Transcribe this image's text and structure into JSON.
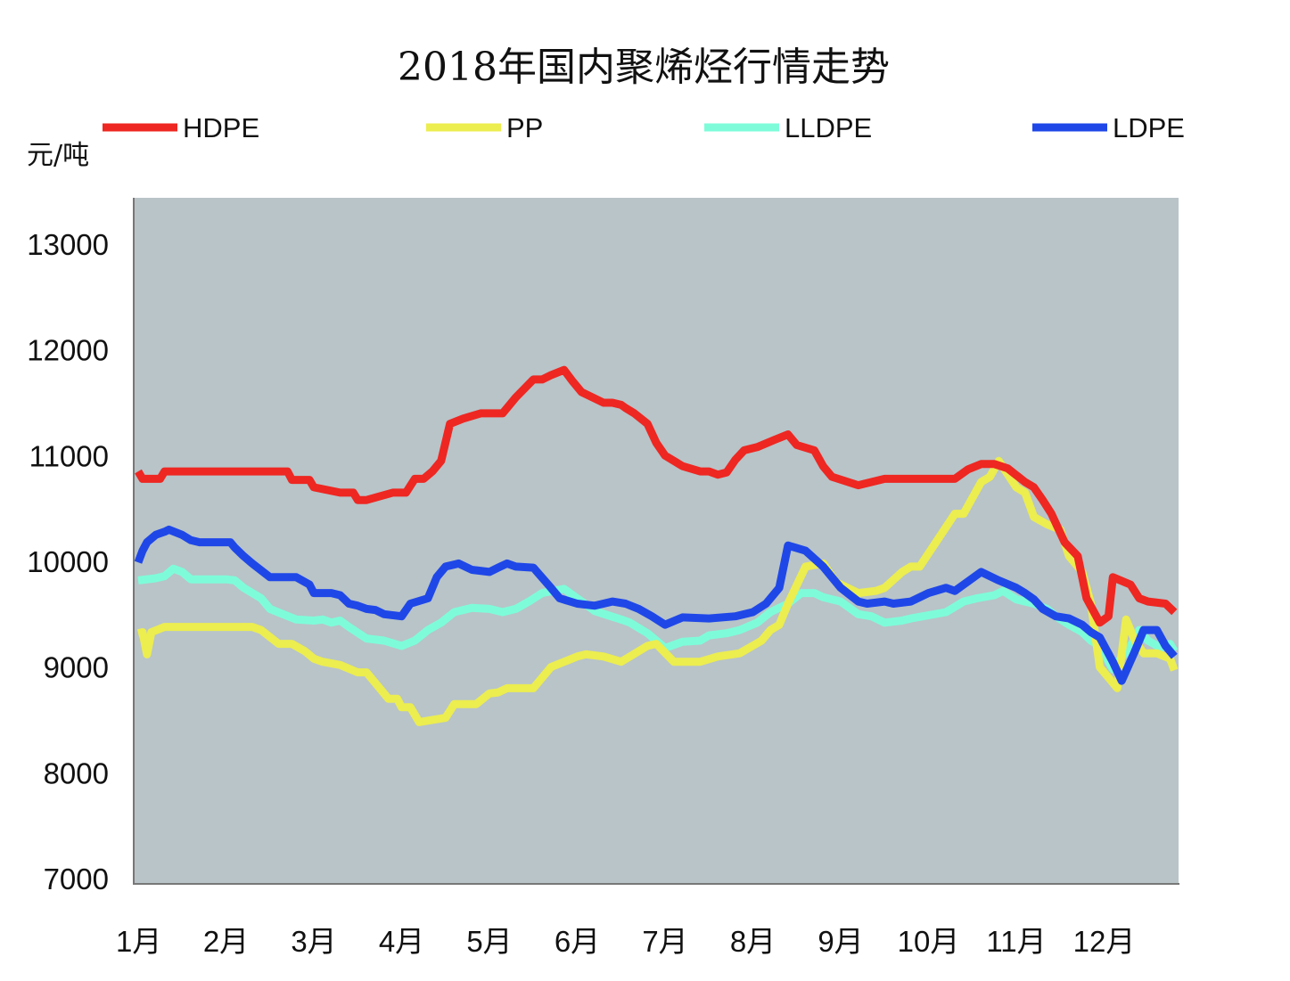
{
  "chart_data": {
    "type": "line",
    "title": "2018年国内聚烯烃行情走势",
    "ylabel": "元/吨",
    "xlabel": "",
    "ylim": [
      7000,
      13000
    ],
    "yticks": [
      "13000",
      "12000",
      "11000",
      "10000",
      "9000",
      "8000",
      "7000"
    ],
    "x_domain": [
      1,
      12.85
    ],
    "categories": [
      "1月",
      "2月",
      "3月",
      "4月",
      "5月",
      "6月",
      "7月",
      "8月",
      "9月",
      "10月",
      "11月",
      "12月"
    ],
    "grid": false,
    "legend_position": "top",
    "plot_background": "#b8c4c8",
    "series": [
      {
        "name": "HDPE",
        "color": "#ee2722",
        "x": [
          1.0,
          1.05,
          1.1,
          1.25,
          1.3,
          2.0,
          2.5,
          2.7,
          2.75,
          2.95,
          3.0,
          3.3,
          3.35,
          3.45,
          3.5,
          3.6,
          3.9,
          3.95,
          4.05,
          4.15,
          4.25,
          4.35,
          4.45,
          4.55,
          4.7,
          4.9,
          5.05,
          5.15,
          5.3,
          5.5,
          5.6,
          5.7,
          5.85,
          5.95,
          6.05,
          6.3,
          6.4,
          6.5,
          6.55,
          6.65,
          6.8,
          6.9,
          7.0,
          7.2,
          7.4,
          7.5,
          7.6,
          7.7,
          7.8,
          7.9,
          8.05,
          8.25,
          8.4,
          8.5,
          8.7,
          8.8,
          8.9,
          9.2,
          9.35,
          9.5,
          10.3,
          10.45,
          10.6,
          10.75,
          10.9,
          11.1,
          11.2,
          11.3,
          11.4,
          11.55,
          11.7,
          11.8,
          11.95,
          12.05,
          12.1,
          12.3,
          12.4,
          12.5,
          12.7,
          12.8
        ],
        "y": [
          10850,
          10780,
          10780,
          10780,
          10850,
          10850,
          10850,
          10850,
          10770,
          10770,
          10700,
          10650,
          10650,
          10650,
          10580,
          10580,
          10650,
          10650,
          10650,
          10780,
          10780,
          10850,
          10950,
          11300,
          11350,
          11400,
          11400,
          11400,
          11550,
          11720,
          11720,
          11760,
          11810,
          11700,
          11600,
          11500,
          11500,
          11480,
          11450,
          11400,
          11300,
          11120,
          11000,
          10900,
          10850,
          10850,
          10820,
          10840,
          10960,
          11050,
          11080,
          11150,
          11200,
          11100,
          11050,
          10900,
          10800,
          10720,
          10750,
          10780,
          10780,
          10870,
          10920,
          10920,
          10880,
          10750,
          10700,
          10580,
          10450,
          10180,
          10050,
          9650,
          9420,
          9480,
          9850,
          9780,
          9650,
          9620,
          9600,
          9520
        ]
      },
      {
        "name": "PP",
        "color": "#eced4f",
        "x": [
          1.0,
          1.05,
          1.1,
          1.15,
          1.3,
          2.0,
          2.1,
          2.3,
          2.4,
          2.6,
          2.75,
          2.9,
          3.0,
          3.1,
          3.3,
          3.5,
          3.6,
          3.85,
          3.95,
          4.0,
          4.1,
          4.2,
          4.5,
          4.6,
          4.85,
          5.0,
          5.1,
          5.2,
          5.3,
          5.5,
          5.7,
          6.0,
          6.1,
          6.3,
          6.5,
          6.6,
          6.8,
          6.9,
          7.1,
          7.4,
          7.6,
          7.85,
          8.1,
          8.2,
          8.3,
          8.4,
          8.6,
          8.8,
          8.95,
          9.2,
          9.4,
          9.5,
          9.7,
          9.8,
          9.9,
          10.3,
          10.4,
          10.6,
          10.7,
          10.8,
          11.0,
          11.1,
          11.2,
          11.35,
          11.5,
          11.6,
          11.75,
          11.85,
          11.95,
          12.15,
          12.25,
          12.35,
          12.45,
          12.6,
          12.75,
          12.8
        ],
        "y": [
          9320,
          9330,
          9120,
          9330,
          9380,
          9380,
          9380,
          9380,
          9350,
          9220,
          9220,
          9150,
          9080,
          9050,
          9020,
          8950,
          8950,
          8700,
          8700,
          8620,
          8620,
          8480,
          8520,
          8650,
          8650,
          8750,
          8760,
          8800,
          8800,
          8800,
          9000,
          9100,
          9120,
          9100,
          9050,
          9100,
          9200,
          9220,
          9050,
          9050,
          9100,
          9130,
          9250,
          9350,
          9400,
          9600,
          9950,
          9980,
          9800,
          9700,
          9720,
          9750,
          9900,
          9950,
          9950,
          10450,
          10450,
          10750,
          10800,
          10950,
          10700,
          10650,
          10420,
          10350,
          10300,
          10050,
          9900,
          9600,
          9000,
          8800,
          9450,
          9250,
          9130,
          9130,
          9080,
          8970
        ]
      },
      {
        "name": "LLDPE",
        "color": "#7efcd9",
        "x": [
          1.0,
          1.2,
          1.3,
          1.4,
          1.5,
          1.6,
          2.0,
          2.1,
          2.2,
          2.4,
          2.5,
          2.8,
          3.0,
          3.1,
          3.2,
          3.3,
          3.4,
          3.6,
          3.8,
          4.0,
          4.15,
          4.3,
          4.45,
          4.6,
          4.8,
          5.0,
          5.15,
          5.3,
          5.45,
          5.6,
          5.85,
          6.0,
          6.2,
          6.5,
          6.6,
          6.8,
          6.9,
          7.0,
          7.2,
          7.4,
          7.5,
          7.7,
          7.85,
          8.05,
          8.2,
          8.4,
          8.55,
          8.7,
          8.8,
          9.0,
          9.2,
          9.35,
          9.5,
          9.7,
          9.8,
          10.2,
          10.4,
          10.55,
          10.75,
          10.85,
          11.0,
          11.2,
          11.35,
          11.45,
          11.6,
          11.75,
          11.85,
          11.95,
          12.1,
          12.3,
          12.4,
          12.5,
          12.65,
          12.75,
          12.8
        ],
        "y": [
          9820,
          9840,
          9860,
          9930,
          9900,
          9830,
          9830,
          9820,
          9750,
          9650,
          9550,
          9450,
          9440,
          9450,
          9420,
          9440,
          9380,
          9270,
          9250,
          9200,
          9250,
          9350,
          9420,
          9520,
          9560,
          9550,
          9520,
          9550,
          9620,
          9700,
          9740,
          9650,
          9530,
          9450,
          9420,
          9320,
          9250,
          9180,
          9240,
          9250,
          9300,
          9320,
          9350,
          9420,
          9520,
          9600,
          9700,
          9700,
          9660,
          9620,
          9500,
          9480,
          9420,
          9440,
          9460,
          9520,
          9620,
          9650,
          9680,
          9720,
          9640,
          9600,
          9550,
          9480,
          9400,
          9330,
          9250,
          9200,
          8980,
          9200,
          9350,
          9250,
          9180,
          9220,
          9150
        ]
      },
      {
        "name": "LDPE",
        "color": "#1f47e8",
        "x": [
          1.0,
          1.05,
          1.1,
          1.2,
          1.3,
          1.35,
          1.5,
          1.6,
          1.7,
          2.0,
          2.05,
          2.1,
          2.2,
          2.3,
          2.5,
          2.7,
          2.8,
          2.95,
          3.0,
          3.2,
          3.3,
          3.4,
          3.5,
          3.6,
          3.7,
          3.8,
          4.0,
          4.1,
          4.3,
          4.4,
          4.5,
          4.65,
          4.8,
          5.0,
          5.1,
          5.2,
          5.3,
          5.5,
          5.7,
          5.8,
          6.0,
          6.2,
          6.4,
          6.55,
          6.7,
          6.85,
          7.0,
          7.2,
          7.5,
          7.8,
          8.0,
          8.15,
          8.3,
          8.4,
          8.6,
          8.8,
          9.0,
          9.2,
          9.3,
          9.5,
          9.6,
          9.8,
          10.0,
          10.2,
          10.3,
          10.4,
          10.6,
          10.8,
          11.0,
          11.1,
          11.2,
          11.3,
          11.45,
          11.6,
          11.75,
          11.85,
          11.95,
          12.1,
          12.2,
          12.35,
          12.45,
          12.6,
          12.7,
          12.8
        ],
        "y": [
          9990,
          10100,
          10180,
          10250,
          10280,
          10300,
          10250,
          10200,
          10180,
          10180,
          10180,
          10130,
          10050,
          9980,
          9850,
          9850,
          9850,
          9780,
          9700,
          9700,
          9680,
          9600,
          9580,
          9550,
          9540,
          9500,
          9480,
          9600,
          9650,
          9850,
          9950,
          9980,
          9920,
          9900,
          9940,
          9980,
          9950,
          9940,
          9750,
          9650,
          9600,
          9580,
          9620,
          9600,
          9550,
          9480,
          9400,
          9470,
          9460,
          9480,
          9520,
          9600,
          9750,
          10150,
          10100,
          9950,
          9750,
          9620,
          9600,
          9620,
          9600,
          9620,
          9700,
          9750,
          9720,
          9780,
          9900,
          9820,
          9750,
          9700,
          9640,
          9550,
          9480,
          9460,
          9400,
          9330,
          9280,
          9050,
          8870,
          9150,
          9350,
          9350,
          9200,
          9100
        ]
      }
    ]
  }
}
